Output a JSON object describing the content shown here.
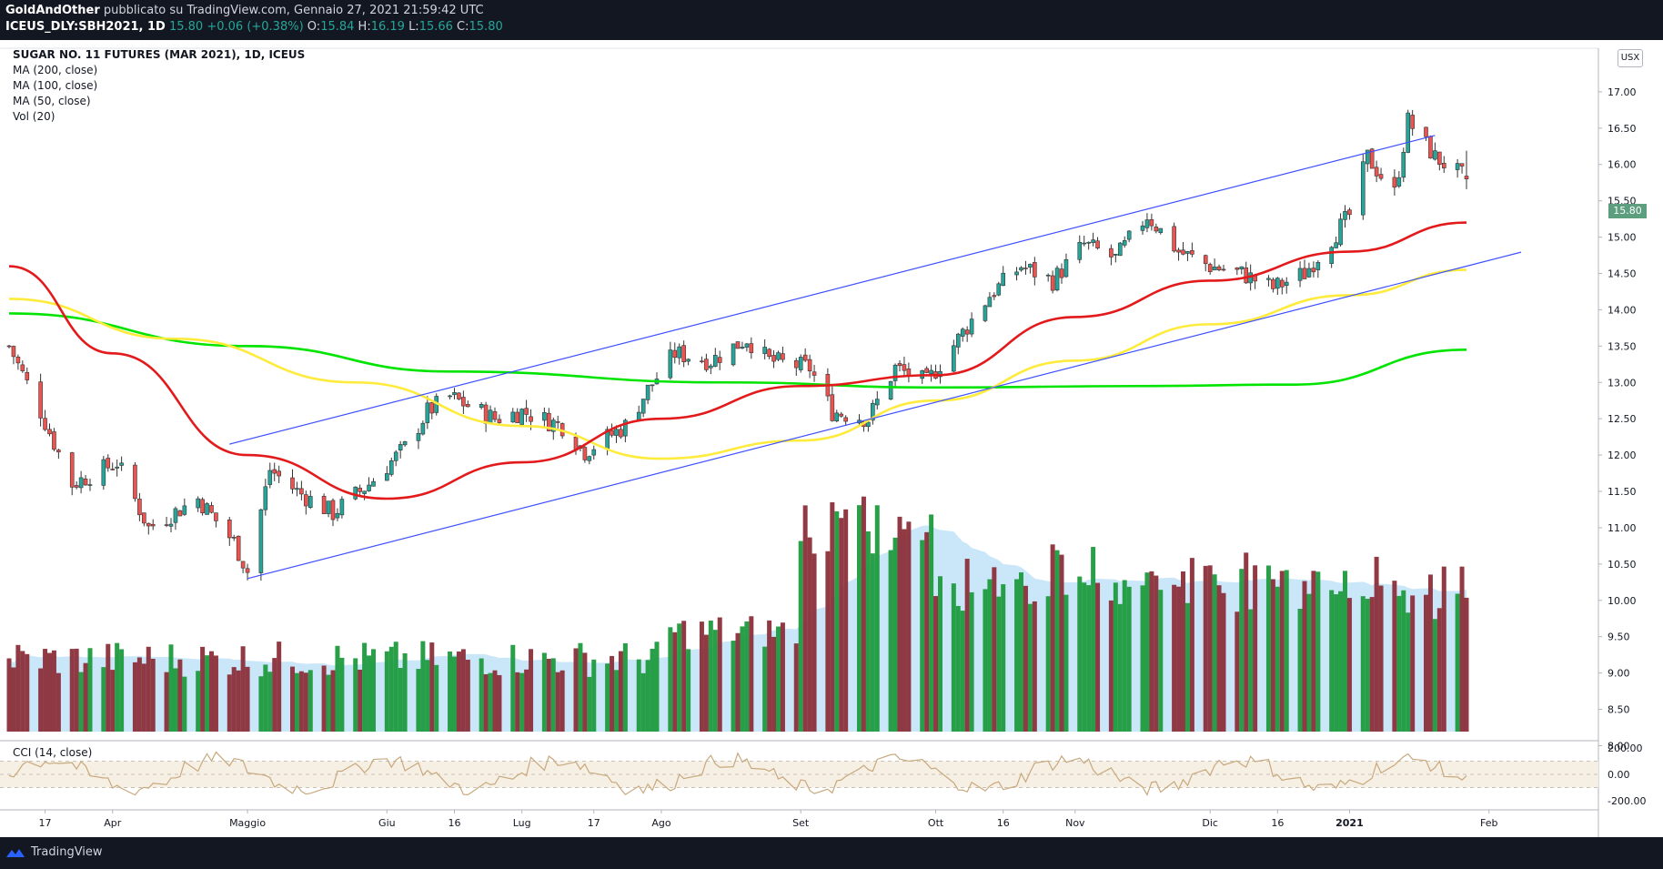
{
  "header": {
    "author": "GoldAndOther",
    "published_text": "pubblicato su TradingView.com, Gennaio 27, 2021 21:59:42 UTC",
    "symbol": "ICEUS_DLY:SBH2021, 1D",
    "last": "15.80",
    "change": "+0.06 (+0.38%)",
    "open_label": "O:",
    "open": "15.84",
    "high_label": "H:",
    "high": "16.19",
    "low_label": "L:",
    "low": "15.66",
    "close_label": "C:",
    "close": "15.80"
  },
  "legend": {
    "title": "SUGAR NO. 11 FUTURES (MAR 2021), 1D, ICEUS",
    "ma200": "MA (200, close)",
    "ma100": "MA (100, close)",
    "ma50": "MA (50, close)",
    "vol": "Vol (20)"
  },
  "cci_label": "CCI (14, close)",
  "currency_button": "USX",
  "last_price_tag": "15.80",
  "footer": {
    "brand": "TradingView"
  },
  "colors": {
    "up": "#26a69a",
    "down": "#ef5350",
    "ma50": "#e31a1c",
    "ma100": "#ffeb3b",
    "ma200": "#00e400",
    "channel": "#3f51ff",
    "vol_up": "#1e9a3e",
    "vol_down": "#8b2f3a",
    "vol_ma": "#b3dcf7"
  },
  "chart_data": {
    "type": "candlestick",
    "title": "SUGAR NO. 11 FUTURES (MAR 2021), 1D, ICEUS",
    "price_ticks": [
      "17.00",
      "16.50",
      "16.00",
      "15.50",
      "15.00",
      "14.50",
      "14.00",
      "13.50",
      "13.00",
      "12.50",
      "12.00",
      "11.50",
      "11.00",
      "10.50",
      "10.00",
      "9.50",
      "9.00",
      "8.50",
      "8.00"
    ],
    "price_range": [
      7.73,
      17.6
    ],
    "cci_ticks": [
      "200.00",
      "0.00",
      "-200.00"
    ],
    "x_labels": [
      "17",
      "Apr",
      "Maggio",
      "Giu",
      "16",
      "Lug",
      "17",
      "Ago",
      "Set",
      "Ott",
      "16",
      "Nov",
      "Dic",
      "16",
      "2021",
      "Feb"
    ],
    "x_label_dates": [
      "2020-03-17",
      "2020-04-01",
      "2020-05-01",
      "2020-06-01",
      "2020-06-16",
      "2020-07-01",
      "2020-07-17",
      "2020-08-01",
      "2020-09-01",
      "2020-10-01",
      "2020-10-16",
      "2020-11-01",
      "2020-12-01",
      "2020-12-16",
      "2021-01-01",
      "2021-02-01"
    ],
    "price_anchors": [
      [
        "2020-03-09",
        13.5
      ],
      [
        "2020-03-16",
        12.6
      ],
      [
        "2020-03-23",
        11.6
      ],
      [
        "2020-04-02",
        11.9
      ],
      [
        "2020-04-09",
        11.0
      ],
      [
        "2020-04-20",
        11.4
      ],
      [
        "2020-04-28",
        10.8
      ],
      [
        "2020-05-01",
        10.4
      ],
      [
        "2020-05-06",
        11.8
      ],
      [
        "2020-05-12",
        11.5
      ],
      [
        "2020-05-20",
        11.2
      ],
      [
        "2020-05-28",
        11.6
      ],
      [
        "2020-06-05",
        12.1
      ],
      [
        "2020-06-10",
        12.6
      ],
      [
        "2020-06-15",
        12.8
      ],
      [
        "2020-06-25",
        12.5
      ],
      [
        "2020-07-01",
        12.6
      ],
      [
        "2020-07-10",
        12.4
      ],
      [
        "2020-07-15",
        12.05
      ],
      [
        "2020-07-24",
        12.4
      ],
      [
        "2020-07-29",
        12.9
      ],
      [
        "2020-08-04",
        13.4
      ],
      [
        "2020-08-12",
        13.3
      ],
      [
        "2020-08-20",
        13.6
      ],
      [
        "2020-08-25",
        13.3
      ],
      [
        "2020-09-03",
        13.2
      ],
      [
        "2020-09-08",
        12.6
      ],
      [
        "2020-09-16",
        12.5
      ],
      [
        "2020-09-22",
        13.2
      ],
      [
        "2020-09-29",
        13.0
      ],
      [
        "2020-10-06",
        13.6
      ],
      [
        "2020-10-13",
        14.2
      ],
      [
        "2020-10-20",
        14.6
      ],
      [
        "2020-10-27",
        14.4
      ],
      [
        "2020-11-03",
        14.9
      ],
      [
        "2020-11-10",
        14.7
      ],
      [
        "2020-11-17",
        15.3
      ],
      [
        "2020-11-24",
        14.8
      ],
      [
        "2020-12-01",
        14.6
      ],
      [
        "2020-12-08",
        14.5
      ],
      [
        "2020-12-15",
        14.3
      ],
      [
        "2020-12-22",
        14.5
      ],
      [
        "2021-01-01",
        15.3
      ],
      [
        "2021-01-05",
        16.1
      ],
      [
        "2021-01-11",
        15.6
      ],
      [
        "2021-01-14",
        16.6
      ],
      [
        "2021-01-20",
        16.1
      ],
      [
        "2021-01-27",
        15.8
      ]
    ],
    "ma50_points": [
      [
        "2020-03-09",
        14.6
      ],
      [
        "2020-04-01",
        13.4
      ],
      [
        "2020-05-01",
        12.0
      ],
      [
        "2020-06-01",
        11.4
      ],
      [
        "2020-07-01",
        11.9
      ],
      [
        "2020-08-01",
        12.5
      ],
      [
        "2020-09-01",
        12.95
      ],
      [
        "2020-10-01",
        13.1
      ],
      [
        "2020-11-01",
        13.9
      ],
      [
        "2020-12-01",
        14.4
      ],
      [
        "2021-01-01",
        14.8
      ],
      [
        "2021-01-27",
        15.2
      ]
    ],
    "ma100_points": [
      [
        "2020-03-09",
        14.15
      ],
      [
        "2020-04-15",
        13.6
      ],
      [
        "2020-05-25",
        13.0
      ],
      [
        "2020-07-01",
        12.4
      ],
      [
        "2020-08-01",
        11.95
      ],
      [
        "2020-09-01",
        12.2
      ],
      [
        "2020-10-01",
        12.75
      ],
      [
        "2020-11-01",
        13.3
      ],
      [
        "2020-12-01",
        13.8
      ],
      [
        "2021-01-01",
        14.2
      ],
      [
        "2021-01-27",
        14.55
      ]
    ],
    "ma200_points": [
      [
        "2020-03-09",
        13.95
      ],
      [
        "2020-05-01",
        13.5
      ],
      [
        "2020-06-15",
        13.15
      ],
      [
        "2020-08-15",
        13.0
      ],
      [
        "2020-10-01",
        12.93
      ],
      [
        "2020-11-15",
        12.95
      ],
      [
        "2020-12-20",
        12.97
      ],
      [
        "2021-01-27",
        13.45
      ]
    ],
    "channel_lines": [
      {
        "from": [
          "2020-04-27",
          12.15
        ],
        "to": [
          "2021-01-20",
          16.4
        ]
      },
      {
        "from": [
          "2020-05-01",
          10.3
        ],
        "to": [
          "2021-01-27",
          14.6
        ]
      }
    ]
  }
}
